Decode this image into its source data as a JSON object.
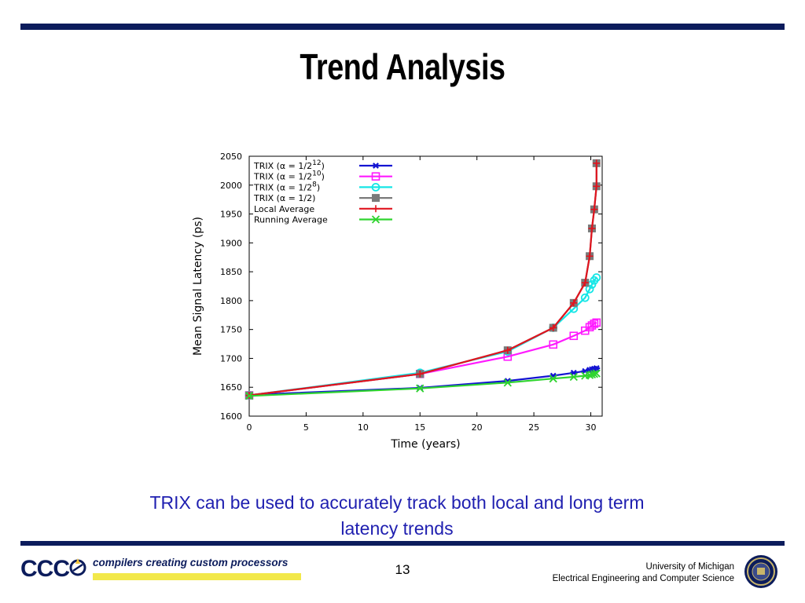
{
  "slide": {
    "title": "Trend Analysis",
    "caption_line1": "TRIX can be used to accurately track both local and long term",
    "caption_line2": "latency trends",
    "page_number": "13"
  },
  "footer": {
    "logo_text": "CCC",
    "tagline": "compilers creating custom processors",
    "affiliation_line1": "University of Michigan",
    "affiliation_line2": "Electrical Engineering and Computer Science"
  },
  "colors": {
    "rule": "#0c1c5c",
    "caption": "#1f1fb0",
    "logo_bar": "#f2e84a"
  },
  "chart_data": {
    "type": "line",
    "xlabel": "Time (years)",
    "ylabel": "Mean Signal Latency (ps)",
    "xlim": [
      0,
      31
    ],
    "ylim": [
      1600,
      2050
    ],
    "xticks": [
      0,
      5,
      10,
      15,
      20,
      25,
      30
    ],
    "yticks": [
      1600,
      1650,
      1700,
      1750,
      1800,
      1850,
      1900,
      1950,
      2000,
      2050
    ],
    "grid": false,
    "legend_position": "top-left",
    "series": [
      {
        "legend": "TRIX (α = 1/2^12)",
        "legend_base": "TRIX (α = 1/2",
        "legend_exp": "12",
        "legend_tail": ")",
        "color": "#1414d2",
        "marker": "asterisk",
        "points": [
          [
            0,
            1637
          ],
          [
            15,
            1649
          ],
          [
            22.7,
            1661
          ],
          [
            26.7,
            1670
          ],
          [
            28.5,
            1675
          ],
          [
            29.5,
            1678
          ],
          [
            29.9,
            1680
          ],
          [
            30.1,
            1681
          ],
          [
            30.3,
            1682
          ],
          [
            30.5,
            1683
          ]
        ]
      },
      {
        "legend": "TRIX (α = 1/2^10)",
        "legend_base": "TRIX (α = 1/2",
        "legend_exp": "10",
        "legend_tail": ")",
        "color": "#ff1aff",
        "marker": "square-open",
        "points": [
          [
            0,
            1636
          ],
          [
            15,
            1673
          ],
          [
            22.7,
            1703
          ],
          [
            26.7,
            1724
          ],
          [
            28.5,
            1739
          ],
          [
            29.5,
            1748
          ],
          [
            29.9,
            1754
          ],
          [
            30.1,
            1757
          ],
          [
            30.3,
            1760
          ],
          [
            30.5,
            1762
          ]
        ]
      },
      {
        "legend": "TRIX (α = 1/2^8)",
        "legend_base": "TRIX (α = 1/2",
        "legend_exp": "8",
        "legend_tail": ")",
        "color": "#16e6e6",
        "marker": "circle-open",
        "points": [
          [
            0,
            1636
          ],
          [
            15,
            1675
          ],
          [
            22.7,
            1712
          ],
          [
            26.7,
            1753
          ],
          [
            28.5,
            1786
          ],
          [
            29.5,
            1805
          ],
          [
            29.9,
            1820
          ],
          [
            30.1,
            1828
          ],
          [
            30.3,
            1835
          ],
          [
            30.5,
            1840
          ]
        ]
      },
      {
        "legend": "TRIX (α = 1/2)",
        "legend_base": "TRIX (α = 1/2",
        "legend_exp": "",
        "legend_tail": ")",
        "color": "#7a7a7a",
        "marker": "square-filled",
        "points": [
          [
            0,
            1636
          ],
          [
            15,
            1673
          ],
          [
            22.7,
            1714
          ],
          [
            26.7,
            1753
          ],
          [
            28.5,
            1796
          ],
          [
            29.5,
            1831
          ],
          [
            29.9,
            1877
          ],
          [
            30.1,
            1925
          ],
          [
            30.3,
            1958
          ],
          [
            30.5,
            1998
          ],
          [
            30.5,
            2038
          ]
        ]
      },
      {
        "legend": "Local Average",
        "legend_base": "Local Average",
        "legend_exp": "",
        "legend_tail": "",
        "color": "#e0141e",
        "marker": "plus",
        "points": [
          [
            0,
            1636
          ],
          [
            15,
            1673
          ],
          [
            22.7,
            1714
          ],
          [
            26.7,
            1753
          ],
          [
            28.5,
            1796
          ],
          [
            29.5,
            1831
          ],
          [
            29.9,
            1877
          ],
          [
            30.1,
            1925
          ],
          [
            30.3,
            1958
          ],
          [
            30.5,
            1998
          ],
          [
            30.5,
            2038
          ]
        ]
      },
      {
        "legend": "Running Average",
        "legend_base": "Running Average",
        "legend_exp": "",
        "legend_tail": "",
        "color": "#2fd42f",
        "marker": "cross",
        "points": [
          [
            0,
            1635
          ],
          [
            15,
            1648
          ],
          [
            22.7,
            1658
          ],
          [
            26.7,
            1665
          ],
          [
            28.5,
            1668
          ],
          [
            29.5,
            1670
          ],
          [
            29.9,
            1671
          ],
          [
            30.1,
            1672
          ],
          [
            30.3,
            1673
          ],
          [
            30.5,
            1674
          ]
        ]
      }
    ]
  }
}
